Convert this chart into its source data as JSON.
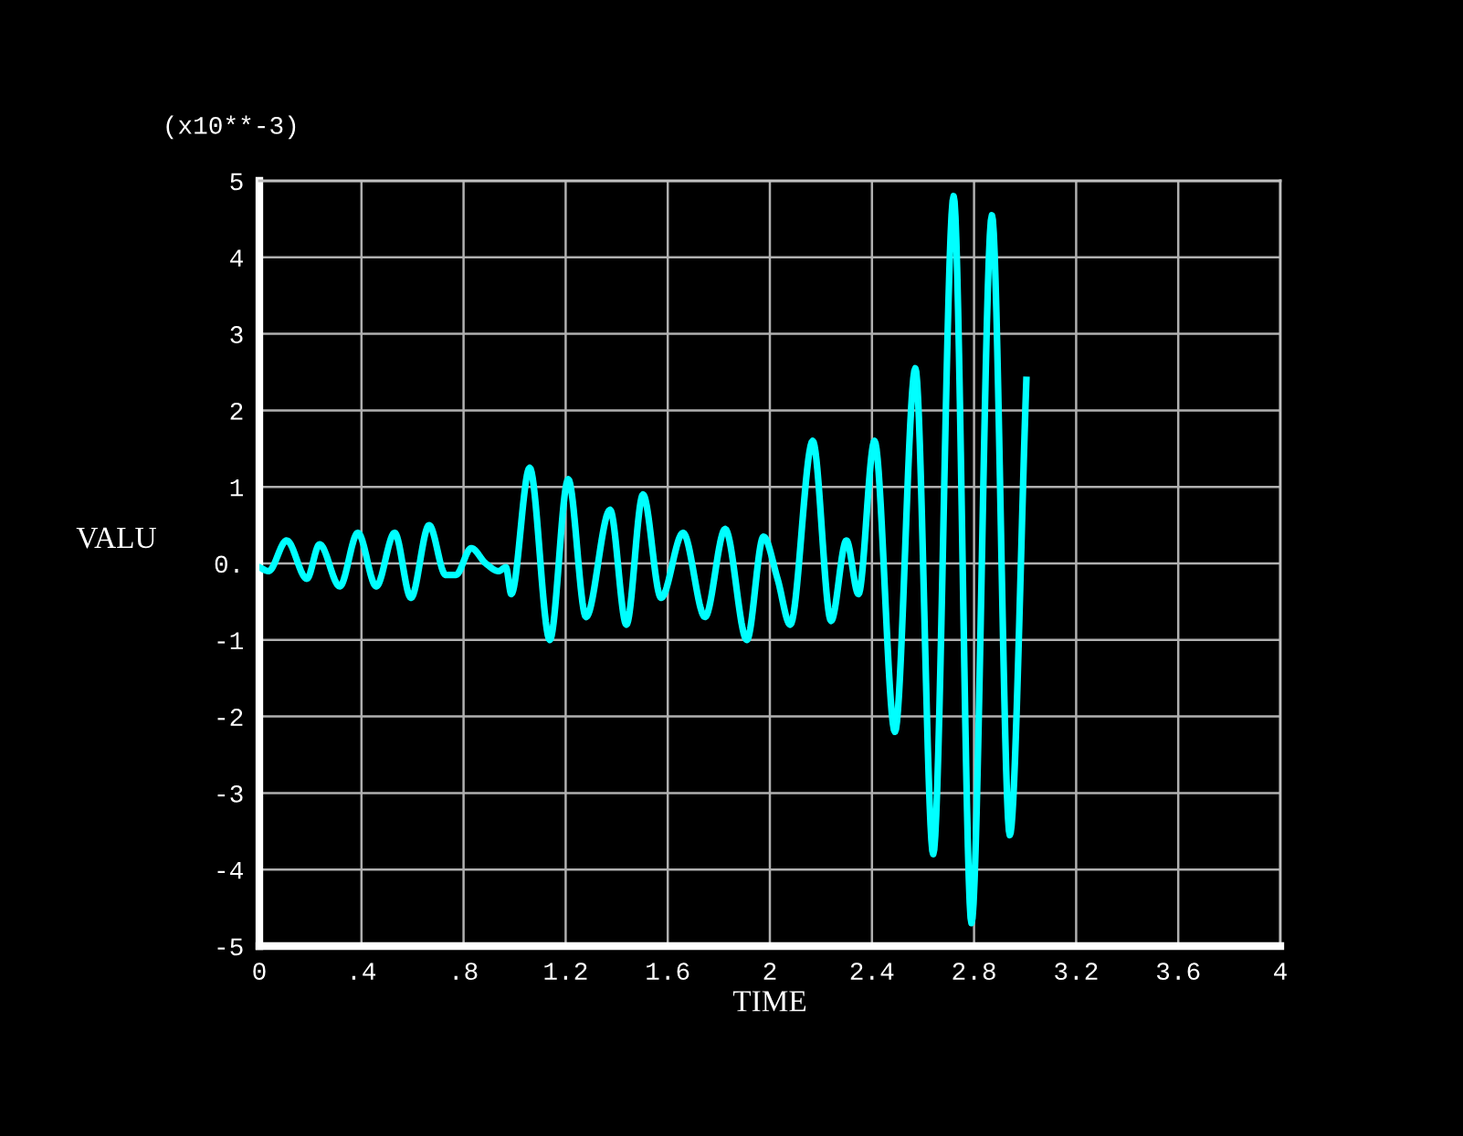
{
  "chart_data": {
    "type": "line",
    "xlabel": "TIME",
    "ylabel": "VALU",
    "annotations": [
      "(x10**-3)"
    ],
    "x": [
      0,
      0.036,
      0.107,
      0.186,
      0.236,
      0.315,
      0.386,
      0.458,
      0.53,
      0.594,
      0.665,
      0.73,
      0.77,
      0.83,
      0.887,
      0.937,
      0.966,
      0.987,
      1.059,
      1.138,
      1.21,
      1.28,
      1.374,
      1.438,
      1.503,
      1.574,
      1.66,
      1.746,
      1.825,
      1.91,
      1.975,
      2.03,
      2.08,
      2.168,
      2.24,
      2.3,
      2.347,
      2.41,
      2.49,
      2.57,
      2.64,
      2.72,
      2.79,
      2.87,
      2.94,
      3.005
    ],
    "series": [
      {
        "color": "#00ffff",
        "values": [
          -0.05,
          -0.1,
          0.3,
          -0.2,
          0.25,
          -0.3,
          0.4,
          -0.3,
          0.4,
          -0.45,
          0.5,
          -0.15,
          -0.15,
          0.2,
          0.0,
          -0.1,
          -0.05,
          -0.4,
          1.25,
          -1.0,
          1.1,
          -0.7,
          0.7,
          -0.8,
          0.9,
          -0.45,
          0.4,
          -0.7,
          0.45,
          -1.0,
          0.35,
          -0.2,
          -0.8,
          1.6,
          -0.75,
          0.3,
          -0.4,
          1.6,
          -2.2,
          2.55,
          -3.8,
          4.8,
          -4.7,
          4.55,
          -3.55,
          2.4
        ]
      }
    ],
    "xlim": [
      0,
      4
    ],
    "ylim": [
      -5,
      5
    ],
    "xticks": [
      0,
      {
        "value": 0.4,
        "label": ".4"
      },
      {
        "value": 0.8,
        "label": ".8"
      },
      1.2,
      1.6,
      2,
      2.4,
      2.8,
      3.2,
      3.6,
      4
    ],
    "yticks": [
      -5,
      -4,
      -3,
      -2,
      -1,
      {
        "value": 0,
        "label": "0."
      },
      1,
      2,
      3,
      4,
      5
    ],
    "grid": true,
    "line_style": "solid",
    "marker": "none"
  }
}
